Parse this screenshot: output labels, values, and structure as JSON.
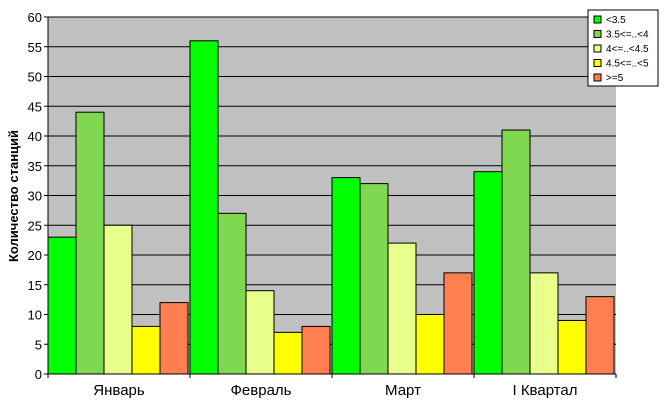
{
  "chart_data": {
    "type": "bar",
    "title": "",
    "xlabel": "",
    "ylabel": "Количество станций",
    "ylim": [
      0,
      60
    ],
    "yticks": [
      0,
      5,
      10,
      15,
      20,
      25,
      30,
      35,
      40,
      45,
      50,
      55,
      60
    ],
    "grid": true,
    "legend_position": "top-right",
    "plot_background": "#c0c0c0",
    "categories": [
      "Январь",
      "Февраль",
      "Март",
      "I Квартал"
    ],
    "series": [
      {
        "name": "<3.5",
        "color": "#00ff00",
        "values": [
          23,
          56,
          33,
          34
        ]
      },
      {
        "name": "3.5<=..<4",
        "color": "#80d850",
        "values": [
          44,
          27,
          32,
          41
        ]
      },
      {
        "name": "4<=..<4.5",
        "color": "#e8ff8c",
        "values": [
          25,
          14,
          22,
          17
        ]
      },
      {
        "name": "4.5<=..<5",
        "color": "#ffff00",
        "values": [
          8,
          7,
          10,
          9
        ]
      },
      {
        "name": ">=5",
        "color": "#ff7f50",
        "values": [
          12,
          8,
          17,
          13
        ]
      }
    ]
  }
}
